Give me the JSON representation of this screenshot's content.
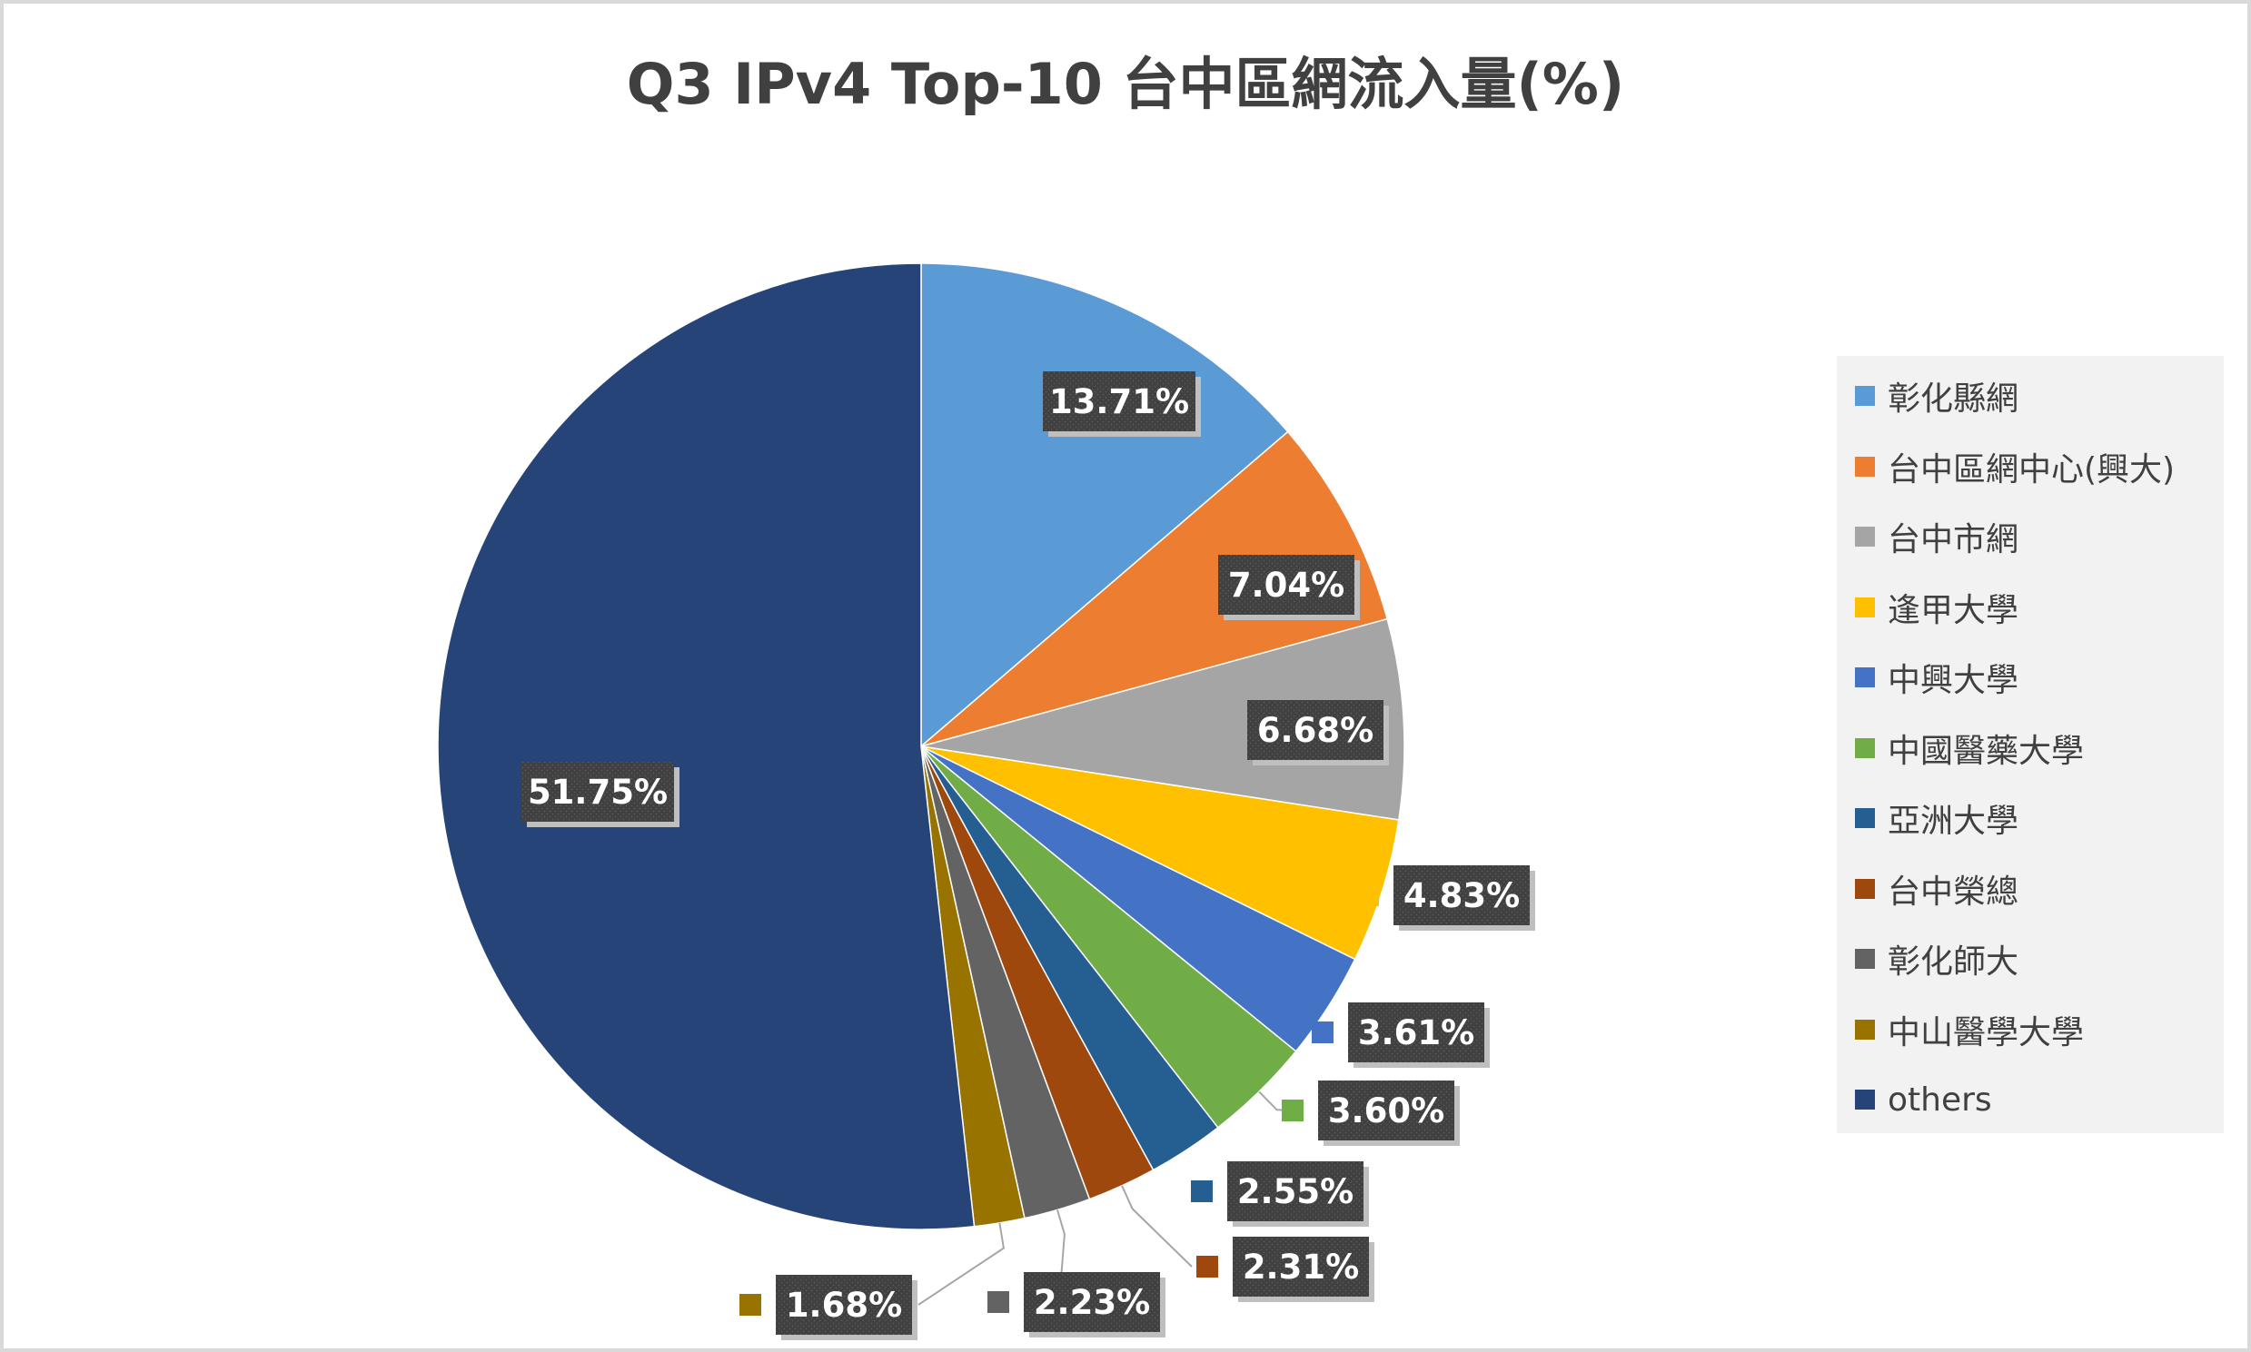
{
  "chart_data": {
    "type": "pie",
    "title": "Q3 IPv4 Top-10 台中區網流入量(%)",
    "categories": [
      "彰化縣網",
      "台中區網中心(興大)",
      "台中市網",
      "逢甲大學",
      "中興大學",
      "中國醫藥大學",
      "亞洲大學",
      "台中榮總",
      "彰化師大",
      "中山醫學大學",
      "others"
    ],
    "values": [
      13.71,
      7.04,
      6.68,
      4.83,
      3.61,
      3.6,
      2.55,
      2.31,
      2.23,
      1.68,
      51.75
    ],
    "data_labels": [
      "13.71%",
      "7.04%",
      "6.68%",
      "4.83%",
      "3.61%",
      "3.60%",
      "2.55%",
      "2.31%",
      "2.23%",
      "1.68%",
      "51.75%"
    ],
    "colors": [
      "#5b9bd5",
      "#ed7d31",
      "#a5a5a5",
      "#ffc000",
      "#4472c4",
      "#70ad47",
      "#255e91",
      "#9e480e",
      "#636363",
      "#997300",
      "#264478"
    ],
    "start_angle": "12 o'clock",
    "direction": "clockwise",
    "legend_position": "right"
  }
}
